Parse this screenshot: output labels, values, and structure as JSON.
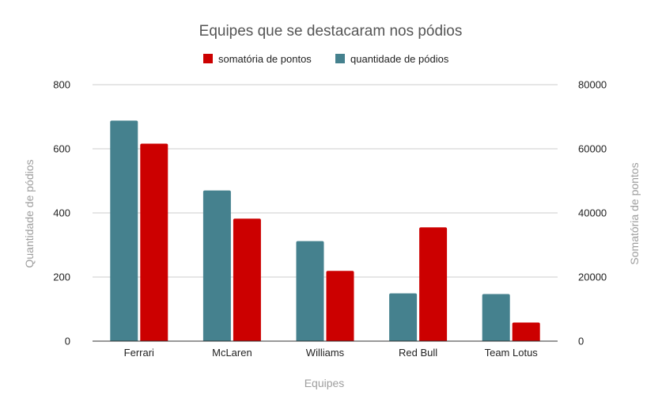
{
  "chart_data": {
    "type": "bar",
    "title": "Equipes que se destacaram nos pódios",
    "xlabel": "Equipes",
    "ylabel_left": "Quantidade de pódios",
    "ylabel_right": "Somatória de pontos",
    "categories": [
      "Ferrari",
      "McLaren",
      "Williams",
      "Red Bull",
      "Team Lotus"
    ],
    "series": [
      {
        "name": "quantidade de pódios",
        "axis": "left",
        "color": "#45818e",
        "values": [
          688,
          470,
          312,
          149,
          147
        ]
      },
      {
        "name": "somatória de pontos",
        "axis": "right",
        "color": "#cc0000",
        "values": [
          61600,
          38200,
          21900,
          35500,
          5800
        ]
      }
    ],
    "ylim_left": [
      0,
      800
    ],
    "ylim_right": [
      0,
      80000
    ],
    "yticks_left": [
      "0",
      "200",
      "400",
      "600",
      "800"
    ],
    "yticks_right": [
      "0",
      "20000",
      "40000",
      "60000",
      "80000"
    ],
    "legend": {
      "position": "top-center",
      "entries": [
        {
          "label": "somatória de pontos",
          "color": "#cc0000"
        },
        {
          "label": "quantidade de pódios",
          "color": "#45818e"
        }
      ]
    },
    "grid": true
  }
}
